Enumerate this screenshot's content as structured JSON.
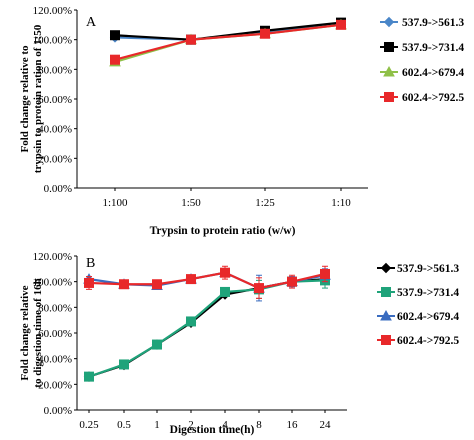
{
  "chart_data": [
    {
      "type": "line",
      "panel_label": "A",
      "title": "",
      "xlabel": "Trypsin to protein ratio (w/w)",
      "ylabel": "Fold change relative  to trypsin to protein ration of 1:50",
      "categories": [
        "1:100",
        "1:50",
        "1:25",
        "1:10"
      ],
      "ylim": [
        0,
        120
      ],
      "yticks": [
        "0.00%",
        "20.00%",
        "40.00%",
        "60.00%",
        "80.00%",
        "100.00%",
        "120.00%"
      ],
      "grid": false,
      "legend_position": "right",
      "series": [
        {
          "name": "537.9->561.3",
          "color": "#4a86c8",
          "marker": "diamond",
          "values": [
            101.5,
            100,
            105,
            110.5
          ]
        },
        {
          "name": "537.9->731.4",
          "color": "#000000",
          "marker": "square",
          "values": [
            103,
            100,
            106,
            111.5
          ]
        },
        {
          "name": "602.4->679.4",
          "color": "#8fc048",
          "marker": "triangle",
          "values": [
            85,
            100,
            104,
            110
          ]
        },
        {
          "name": "602.4->792.5",
          "color": "#e8282a",
          "marker": "square",
          "values": [
            86.5,
            100,
            104,
            110
          ]
        }
      ]
    },
    {
      "type": "line",
      "panel_label": "B",
      "title": "",
      "xlabel": "Digestion time(h)",
      "ylabel": "Fold change relative to digestion time of 16h",
      "categories": [
        "0.25",
        "0.5",
        "1",
        "2",
        "4",
        "8",
        "16",
        "24"
      ],
      "ylim": [
        0,
        120
      ],
      "yticks": [
        "0.00%",
        "20.00%",
        "40.00%",
        "60.00%",
        "80.00%",
        "100.00%",
        "120.00%"
      ],
      "grid": false,
      "legend_position": "right",
      "series": [
        {
          "name": "537.9->561.3",
          "color": "#000000",
          "marker": "diamond",
          "values": [
            26,
            35,
            51,
            68,
            90,
            95,
            100,
            102
          ],
          "errors": [
            0,
            0,
            0,
            0,
            0,
            0,
            0,
            0
          ]
        },
        {
          "name": "537.9->731.4",
          "color": "#1fa37a",
          "marker": "square",
          "values": [
            26,
            35.5,
            51,
            69,
            92,
            94,
            100,
            101
          ],
          "errors": [
            2,
            0,
            2,
            2,
            3,
            7,
            0,
            6
          ]
        },
        {
          "name": "602.4->679.4",
          "color": "#3a6cc0",
          "marker": "triangle",
          "values": [
            102,
            98,
            97,
            102,
            107,
            95,
            100,
            105
          ],
          "errors": [
            2,
            0,
            0,
            2,
            3,
            10,
            4,
            5
          ]
        },
        {
          "name": "602.4->792.5",
          "color": "#e8282a",
          "marker": "square",
          "values": [
            99,
            98,
            98,
            102,
            107,
            95,
            100,
            106
          ],
          "errors": [
            5,
            0,
            3,
            2,
            5,
            8,
            5,
            6
          ]
        }
      ]
    }
  ]
}
